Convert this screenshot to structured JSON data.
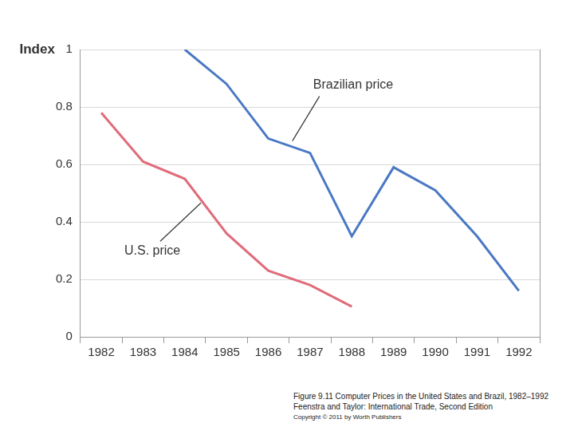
{
  "chart_data": {
    "type": "line",
    "y_label": "Index",
    "categories": [
      "1982",
      "1983",
      "1984",
      "1985",
      "1986",
      "1987",
      "1988",
      "1989",
      "1990",
      "1991",
      "1992"
    ],
    "series": [
      {
        "name": "Brazilian price",
        "color": "#4a78c4",
        "marker": "none",
        "values": [
          null,
          null,
          1.0,
          0.88,
          0.69,
          0.64,
          0.35,
          0.59,
          0.51,
          0.35,
          0.16
        ]
      },
      {
        "name": "U.S. price",
        "color": "#e06c7a",
        "marker": "none",
        "values": [
          0.78,
          0.61,
          0.55,
          0.36,
          0.23,
          0.18,
          0.105,
          null,
          null,
          null,
          null
        ]
      }
    ],
    "ylim": [
      0,
      1
    ],
    "yticks": [
      0,
      0.2,
      0.4,
      0.6,
      0.8,
      1
    ],
    "grid": true,
    "caption": [
      "Figure 9.11 Computer Prices in the United States and Brazil, 1982–1992",
      "Feenstra and Taylor: International Trade, Second Edition",
      "Copyright © 2011 by Worth Publishers"
    ]
  }
}
